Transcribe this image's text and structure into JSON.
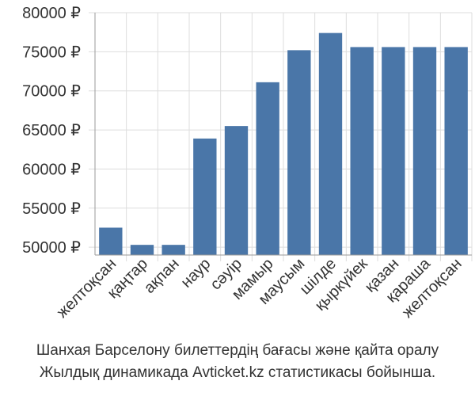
{
  "chart_data": {
    "type": "bar",
    "categories": [
      "желтоқсан",
      "қаңтар",
      "ақпан",
      "наур",
      "сәуір",
      "мамыр",
      "маусым",
      "шілде",
      "қыркүйек",
      "қазан",
      "қараша",
      "желтоқсан"
    ],
    "values": [
      52500,
      50300,
      50300,
      63900,
      65500,
      71100,
      75200,
      77400,
      75600,
      75600,
      75600,
      75600
    ],
    "ylim": [
      49000,
      80000
    ],
    "yticks": [
      50000,
      55000,
      60000,
      65000,
      70000,
      75000,
      80000
    ],
    "ytick_labels": [
      "50000 ₽",
      "55000 ₽",
      "60000 ₽",
      "65000 ₽",
      "70000 ₽",
      "75000 ₽",
      "80000 ₽"
    ],
    "grid": true,
    "bar_color": "#4a76a8",
    "grid_color": "#dddddd",
    "axis_color": "#999999"
  },
  "caption": {
    "line1": "Шанхая Барселону билеттердің бағасы және қайта оралу",
    "line2": "Жылдық динамикада Avticket.kz статистикасы бойынша."
  }
}
